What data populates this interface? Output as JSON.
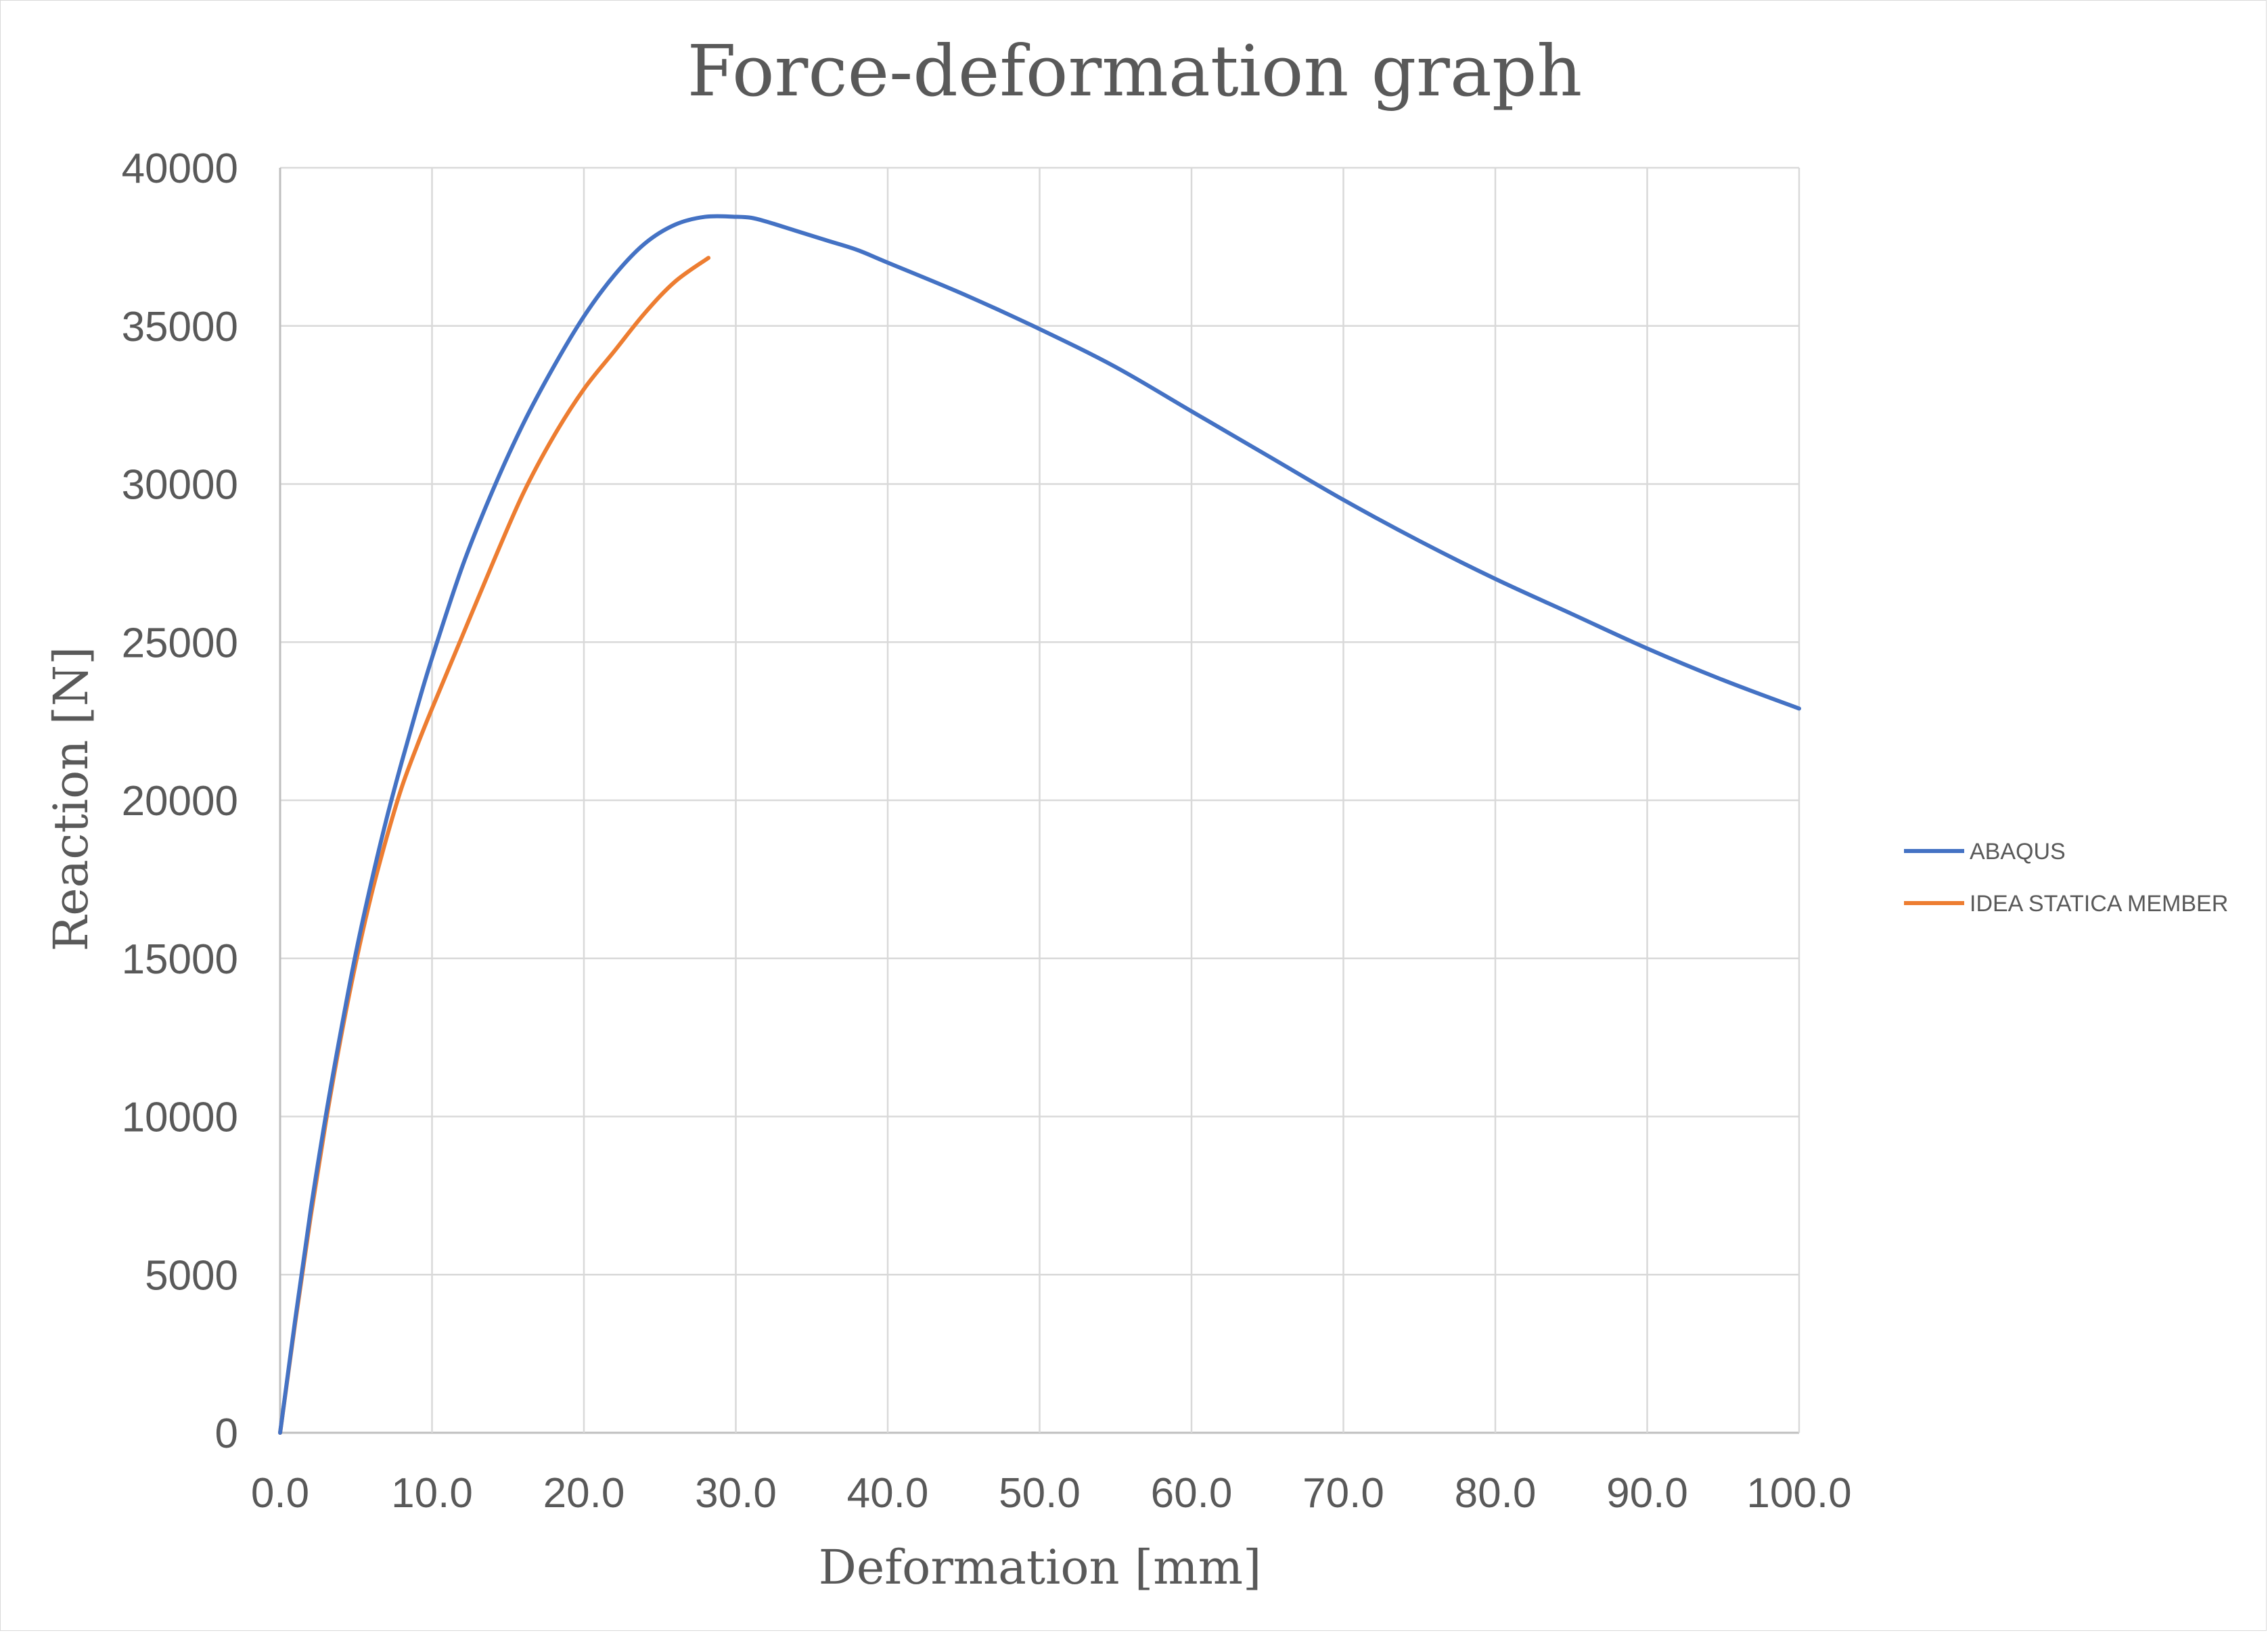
{
  "chart_data": {
    "type": "line",
    "title": "Force-deformation graph",
    "xlabel": "Deformation [mm]",
    "ylabel": "Reaction [N]",
    "xlim": [
      0,
      100
    ],
    "ylim": [
      0,
      40000
    ],
    "x_ticks": [
      "0.0",
      "10.0",
      "20.0",
      "30.0",
      "40.0",
      "50.0",
      "60.0",
      "70.0",
      "80.0",
      "90.0",
      "100.0"
    ],
    "y_ticks": [
      "0",
      "5000",
      "10000",
      "15000",
      "20000",
      "25000",
      "30000",
      "35000",
      "40000"
    ],
    "grid": true,
    "legend_position": "right",
    "series": [
      {
        "name": "ABAQUS",
        "color": "#4472c4",
        "x": [
          0,
          1,
          2,
          3,
          4,
          5,
          6,
          7,
          8,
          9,
          10,
          12,
          14,
          16,
          18,
          20,
          22,
          24,
          26,
          28,
          30,
          31,
          32,
          34,
          36,
          38,
          40,
          45,
          50,
          55,
          60,
          65,
          70,
          75,
          80,
          85,
          90,
          95,
          100
        ],
        "y": [
          0,
          3600,
          7000,
          10000,
          12700,
          15200,
          17400,
          19400,
          21200,
          22900,
          24500,
          27400,
          29800,
          31900,
          33700,
          35300,
          36600,
          37600,
          38200,
          38450,
          38450,
          38420,
          38300,
          38000,
          37700,
          37400,
          37000,
          36000,
          34900,
          33700,
          32300,
          30900,
          29500,
          28200,
          27000,
          25900,
          24800,
          23800,
          22900
        ]
      },
      {
        "name": "IDEA STATICA MEMBER",
        "color": "#ed7d31",
        "x": [
          0,
          1,
          2,
          3,
          4,
          5,
          6,
          7,
          8,
          9,
          10,
          12,
          14,
          16,
          18,
          20,
          22,
          24,
          26,
          28.2
        ],
        "y": [
          0,
          3500,
          6800,
          9800,
          12500,
          14900,
          17000,
          18800,
          20400,
          21700,
          22900,
          25200,
          27500,
          29700,
          31500,
          33000,
          34200,
          35400,
          36400,
          37150
        ]
      }
    ]
  }
}
